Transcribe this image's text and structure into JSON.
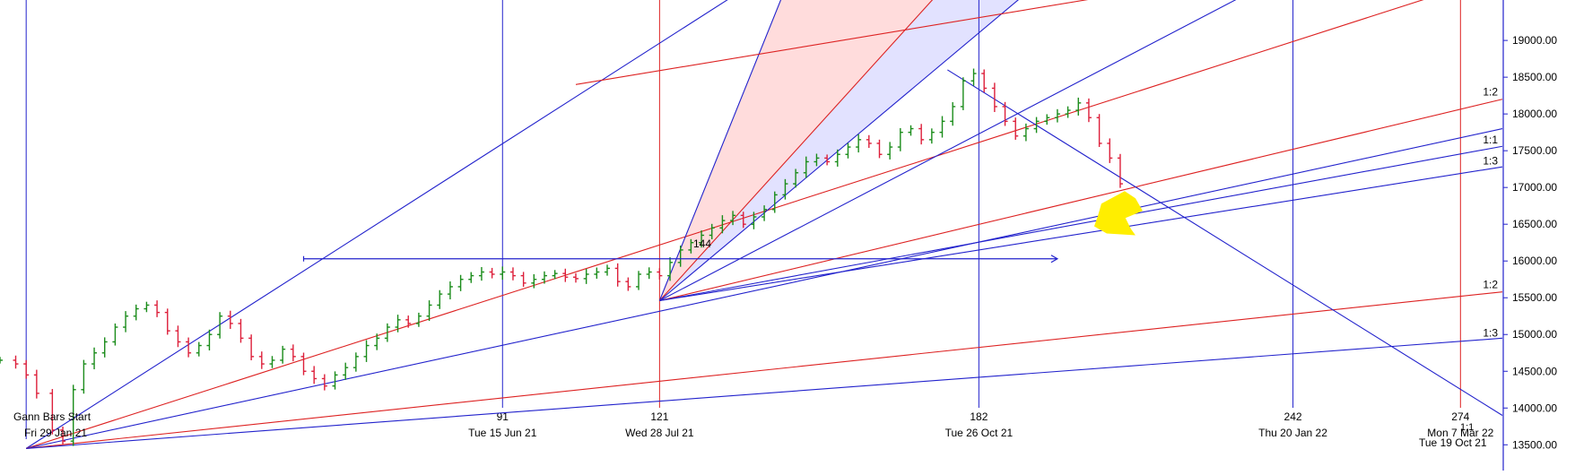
{
  "chart_data": {
    "type": "line",
    "title": "",
    "xlabel": "",
    "ylabel": "",
    "ylim": [
      13200,
      19500
    ],
    "y_ticks": [
      "19000.00",
      "18500.00",
      "18000.00",
      "17500.00",
      "17000.00",
      "16500.00",
      "16000.00",
      "15500.00",
      "15000.00",
      "14500.00",
      "14000.00",
      "13500.00"
    ],
    "y_tick_values": [
      19000,
      18500,
      18000,
      17500,
      17000,
      16500,
      16000,
      15500,
      15000,
      14500,
      14000,
      13500
    ],
    "bar_index_range": [
      -5,
      282
    ],
    "annotations": {
      "gann_start": "Gann Bars Start",
      "gann_start_date": "Fri 29 Jan 21",
      "level_144": "144"
    },
    "time_markers": [
      {
        "bar": 91,
        "count": "91",
        "date": "Tue 15 Jun 21",
        "color": "#2222cc"
      },
      {
        "bar": 121,
        "count": "121",
        "date": "Wed 28 Jul 21",
        "color": "#dd2222"
      },
      {
        "bar": 182,
        "count": "182",
        "date": "Tue 26 Oct 21",
        "color": "#2222cc"
      },
      {
        "bar": 242,
        "count": "242",
        "date": "Thu 20 Jan 22",
        "color": "#2222cc"
      },
      {
        "bar": 274,
        "count": "274",
        "date": "Mon 7 Mar 22",
        "color": "#dd2222"
      }
    ],
    "extra_date_label": "Tue 19 Oct 21",
    "extra_count_label": "1:1",
    "ratio_labels": [
      {
        "text": "1:2",
        "y": 18300
      },
      {
        "text": "1:1",
        "y": 17650
      },
      {
        "text": "1:3",
        "y": 17360
      },
      {
        "text": "1:2",
        "y": 15680
      },
      {
        "text": "1:3",
        "y": 15020
      }
    ],
    "gann_fans": [
      {
        "origin": [
          0,
          13450
        ],
        "color": "#2222cc",
        "points": [
          [
            135,
            19600
          ]
        ]
      },
      {
        "origin": [
          0,
          13450
        ],
        "color": "#dd2222",
        "points": [
          [
            282,
            19900
          ]
        ]
      },
      {
        "origin": [
          0,
          13450
        ],
        "color": "#2222cc",
        "points": [
          [
            282,
            17800
          ]
        ]
      },
      {
        "origin": [
          0,
          13450
        ],
        "color": "#dd2222",
        "points": [
          [
            282,
            15580
          ]
        ]
      },
      {
        "origin": [
          0,
          13450
        ],
        "color": "#2222cc",
        "points": [
          [
            282,
            14950
          ]
        ]
      },
      {
        "origin": [
          121,
          15460
        ],
        "color": "#dd2222",
        "points": [
          [
            282,
            18200
          ]
        ]
      },
      {
        "origin": [
          121,
          15460
        ],
        "color": "#2222cc",
        "points": [
          [
            282,
            17560
          ]
        ]
      },
      {
        "origin": [
          121,
          15460
        ],
        "color": "#2222cc",
        "points": [
          [
            282,
            17280
          ]
        ]
      },
      {
        "origin": [
          121,
          15460
        ],
        "color": "#2222cc",
        "points": [
          [
            145,
            19700
          ]
        ]
      },
      {
        "origin": [
          121,
          15460
        ],
        "color": "#dd2222",
        "points": [
          [
            175,
            19700
          ]
        ]
      },
      {
        "origin": [
          121,
          15460
        ],
        "color": "#2222cc",
        "points": [
          [
            235,
            19700
          ]
        ]
      },
      {
        "origin": [
          121,
          15460
        ],
        "color": "#2222cc",
        "points": [
          [
            192,
            19700
          ]
        ]
      },
      {
        "origin": [
          176,
          18600
        ],
        "color": "#2222cc",
        "points": [
          [
            282,
            13900
          ]
        ]
      },
      {
        "origin": [
          105,
          18400
        ],
        "color": "#dd2222",
        "points": [
          [
            215,
            19700
          ]
        ]
      }
    ],
    "shaded_regions": [
      {
        "color": "#ffd0d0",
        "polygon": [
          [
            121,
            15460
          ],
          [
            145,
            19700
          ],
          [
            175,
            19700
          ]
        ]
      },
      {
        "color": "#d8d8ff",
        "polygon": [
          [
            121,
            15460
          ],
          [
            175,
            19700
          ],
          [
            235,
            19700
          ],
          [
            192,
            19700
          ]
        ]
      }
    ],
    "horizontal_arrow": {
      "y": 16030,
      "x_start": 53,
      "x_end": 197
    },
    "highlight": {
      "color": "#ffee00",
      "x": [
        203,
        210
      ],
      "y": [
        16350,
        16950
      ]
    },
    "price_points": [
      [
        -5,
        14650
      ],
      [
        -2,
        14600
      ],
      [
        0,
        14450
      ],
      [
        2,
        14200
      ],
      [
        5,
        13700
      ],
      [
        7,
        13550
      ],
      [
        9,
        14250
      ],
      [
        11,
        14600
      ],
      [
        13,
        14750
      ],
      [
        15,
        14900
      ],
      [
        17,
        15100
      ],
      [
        19,
        15250
      ],
      [
        21,
        15350
      ],
      [
        23,
        15400
      ],
      [
        25,
        15300
      ],
      [
        27,
        15050
      ],
      [
        29,
        14900
      ],
      [
        31,
        14750
      ],
      [
        33,
        14850
      ],
      [
        35,
        15000
      ],
      [
        37,
        15250
      ],
      [
        39,
        15150
      ],
      [
        41,
        14950
      ],
      [
        43,
        14700
      ],
      [
        45,
        14600
      ],
      [
        47,
        14650
      ],
      [
        49,
        14800
      ],
      [
        51,
        14700
      ],
      [
        53,
        14500
      ],
      [
        55,
        14400
      ],
      [
        57,
        14300
      ],
      [
        59,
        14450
      ],
      [
        61,
        14550
      ],
      [
        63,
        14700
      ],
      [
        65,
        14850
      ],
      [
        67,
        14950
      ],
      [
        69,
        15100
      ],
      [
        71,
        15200
      ],
      [
        73,
        15150
      ],
      [
        75,
        15250
      ],
      [
        77,
        15400
      ],
      [
        79,
        15550
      ],
      [
        81,
        15650
      ],
      [
        83,
        15750
      ],
      [
        85,
        15800
      ],
      [
        87,
        15850
      ],
      [
        89,
        15820
      ],
      [
        91,
        15850
      ],
      [
        93,
        15800
      ],
      [
        95,
        15700
      ],
      [
        97,
        15750
      ],
      [
        99,
        15800
      ],
      [
        101,
        15830
      ],
      [
        103,
        15780
      ],
      [
        105,
        15760
      ],
      [
        107,
        15820
      ],
      [
        109,
        15850
      ],
      [
        111,
        15900
      ],
      [
        113,
        15720
      ],
      [
        115,
        15650
      ],
      [
        117,
        15820
      ],
      [
        119,
        15850
      ],
      [
        121,
        15800
      ],
      [
        123,
        15980
      ],
      [
        125,
        16150
      ],
      [
        127,
        16250
      ],
      [
        129,
        16350
      ],
      [
        131,
        16450
      ],
      [
        133,
        16550
      ],
      [
        135,
        16620
      ],
      [
        137,
        16500
      ],
      [
        139,
        16600
      ],
      [
        141,
        16700
      ],
      [
        143,
        16900
      ],
      [
        145,
        17050
      ],
      [
        147,
        17200
      ],
      [
        149,
        17350
      ],
      [
        151,
        17400
      ],
      [
        153,
        17350
      ],
      [
        155,
        17450
      ],
      [
        157,
        17550
      ],
      [
        159,
        17650
      ],
      [
        161,
        17600
      ],
      [
        163,
        17450
      ],
      [
        165,
        17550
      ],
      [
        167,
        17750
      ],
      [
        169,
        17800
      ],
      [
        171,
        17650
      ],
      [
        173,
        17750
      ],
      [
        175,
        17900
      ],
      [
        177,
        18100
      ],
      [
        179,
        18450
      ],
      [
        181,
        18550
      ],
      [
        183,
        18350
      ],
      [
        185,
        18100
      ],
      [
        187,
        17900
      ],
      [
        189,
        17700
      ],
      [
        191,
        17800
      ],
      [
        193,
        17900
      ],
      [
        195,
        17950
      ],
      [
        197,
        18000
      ],
      [
        199,
        18050
      ],
      [
        201,
        18150
      ],
      [
        203,
        17950
      ],
      [
        205,
        17600
      ],
      [
        207,
        17400
      ],
      [
        209,
        17050
      ]
    ]
  }
}
